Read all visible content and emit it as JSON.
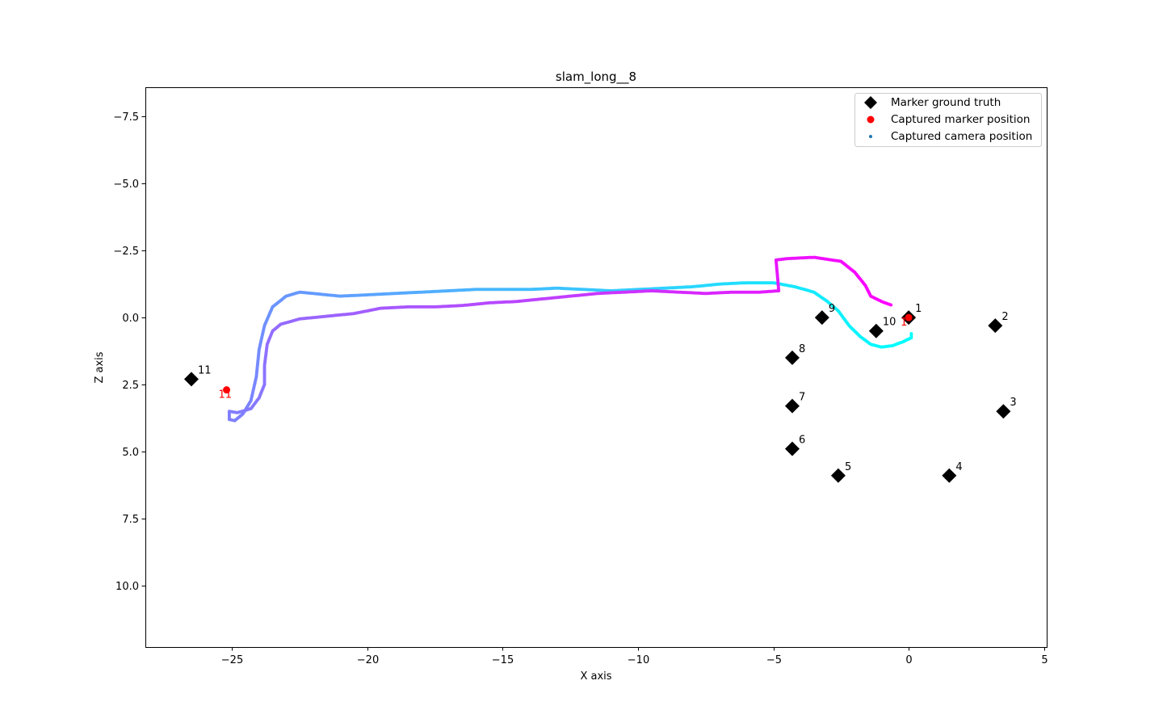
{
  "chart_data": {
    "type": "scatter",
    "title": "slam_long__8",
    "xlabel": "X axis",
    "ylabel": "Z axis",
    "xlim": [
      -28.2,
      5.1
    ],
    "ylim": [
      -8.6,
      12.3
    ],
    "y_inverted": true,
    "grid": false,
    "legend_position": "top-right",
    "x_ticks": [
      {
        "value": -25,
        "label": "−25"
      },
      {
        "value": -20,
        "label": "−20"
      },
      {
        "value": -15,
        "label": "−15"
      },
      {
        "value": -10,
        "label": "−10"
      },
      {
        "value": -5,
        "label": "−5"
      },
      {
        "value": 0,
        "label": "0"
      },
      {
        "value": 5,
        "label": "5"
      }
    ],
    "y_ticks": [
      {
        "value": -7.5,
        "label": "−7.5"
      },
      {
        "value": -5.0,
        "label": "−5.0"
      },
      {
        "value": -2.5,
        "label": "−2.5"
      },
      {
        "value": 0.0,
        "label": "0.0"
      },
      {
        "value": 2.5,
        "label": "2.5"
      },
      {
        "value": 5.0,
        "label": "5.0"
      },
      {
        "value": 7.5,
        "label": "7.5"
      },
      {
        "value": 10.0,
        "label": "10.0"
      }
    ],
    "legend": [
      {
        "label": "Marker ground truth",
        "symbol": "diamond",
        "color": "#000000"
      },
      {
        "label": "Captured marker position",
        "symbol": "circle",
        "color": "#ff0000"
      },
      {
        "label": "Captured camera position",
        "symbol": "dot",
        "color": "#1f77b4"
      }
    ],
    "markers_ground_truth": [
      {
        "label": "1",
        "x": 0.0,
        "z": 0.0
      },
      {
        "label": "2",
        "x": 3.2,
        "z": 0.3
      },
      {
        "label": "3",
        "x": 3.5,
        "z": 3.5
      },
      {
        "label": "4",
        "x": 1.5,
        "z": 5.9
      },
      {
        "label": "5",
        "x": -2.6,
        "z": 5.9
      },
      {
        "label": "6",
        "x": -4.3,
        "z": 4.9
      },
      {
        "label": "7",
        "x": -4.3,
        "z": 3.3
      },
      {
        "label": "8",
        "x": -4.3,
        "z": 1.5
      },
      {
        "label": "9",
        "x": -3.2,
        "z": 0.0
      },
      {
        "label": "10",
        "x": -1.2,
        "z": 0.5
      },
      {
        "label": "11",
        "x": -26.5,
        "z": 2.3
      }
    ],
    "captured_markers": [
      {
        "label": "1",
        "x": 0.0,
        "z": 0.0
      },
      {
        "label": "11",
        "x": -25.2,
        "z": 2.7
      }
    ],
    "camera_path_color_start": "#00ffff",
    "camera_path_color_end": "#ff00ff",
    "camera_path": [
      [
        0.1,
        0.6
      ],
      [
        0.1,
        0.75
      ],
      [
        -0.2,
        0.9
      ],
      [
        -0.6,
        1.05
      ],
      [
        -1.0,
        1.1
      ],
      [
        -1.4,
        1.0
      ],
      [
        -1.8,
        0.7
      ],
      [
        -2.2,
        0.3
      ],
      [
        -2.6,
        -0.25
      ],
      [
        -3.0,
        -0.6
      ],
      [
        -3.5,
        -0.95
      ],
      [
        -4.2,
        -1.15
      ],
      [
        -5.0,
        -1.3
      ],
      [
        -6.0,
        -1.3
      ],
      [
        -7.0,
        -1.25
      ],
      [
        -8.0,
        -1.15
      ],
      [
        -9.0,
        -1.1
      ],
      [
        -10.0,
        -1.05
      ],
      [
        -11.0,
        -1.0
      ],
      [
        -12.0,
        -1.05
      ],
      [
        -13.0,
        -1.1
      ],
      [
        -14.0,
        -1.05
      ],
      [
        -15.0,
        -1.05
      ],
      [
        -16.0,
        -1.05
      ],
      [
        -17.0,
        -1.0
      ],
      [
        -18.0,
        -0.95
      ],
      [
        -19.0,
        -0.9
      ],
      [
        -20.0,
        -0.85
      ],
      [
        -21.0,
        -0.8
      ],
      [
        -21.5,
        -0.85
      ],
      [
        -22.0,
        -0.9
      ],
      [
        -22.5,
        -0.95
      ],
      [
        -23.0,
        -0.8
      ],
      [
        -23.5,
        -0.4
      ],
      [
        -23.8,
        0.3
      ],
      [
        -24.0,
        1.2
      ],
      [
        -24.1,
        2.2
      ],
      [
        -24.3,
        3.1
      ],
      [
        -24.6,
        3.6
      ],
      [
        -24.9,
        3.85
      ],
      [
        -25.1,
        3.8
      ],
      [
        -25.1,
        3.5
      ],
      [
        -24.8,
        3.55
      ],
      [
        -24.3,
        3.4
      ],
      [
        -24.0,
        3.0
      ],
      [
        -23.8,
        2.5
      ],
      [
        -23.8,
        1.8
      ],
      [
        -23.7,
        1.0
      ],
      [
        -23.5,
        0.5
      ],
      [
        -23.2,
        0.25
      ],
      [
        -22.5,
        0.05
      ],
      [
        -21.5,
        -0.05
      ],
      [
        -20.5,
        -0.15
      ],
      [
        -19.5,
        -0.35
      ],
      [
        -18.5,
        -0.4
      ],
      [
        -17.5,
        -0.4
      ],
      [
        -16.5,
        -0.45
      ],
      [
        -15.5,
        -0.55
      ],
      [
        -14.5,
        -0.6
      ],
      [
        -13.5,
        -0.7
      ],
      [
        -12.5,
        -0.8
      ],
      [
        -11.5,
        -0.9
      ],
      [
        -10.5,
        -0.95
      ],
      [
        -9.5,
        -1.0
      ],
      [
        -8.5,
        -0.95
      ],
      [
        -7.5,
        -0.9
      ],
      [
        -6.5,
        -0.95
      ],
      [
        -5.5,
        -0.95
      ],
      [
        -4.8,
        -1.0
      ],
      [
        -4.9,
        -2.15
      ],
      [
        -4.5,
        -2.2
      ],
      [
        -3.5,
        -2.25
      ],
      [
        -2.5,
        -2.1
      ],
      [
        -2.0,
        -1.7
      ],
      [
        -1.6,
        -1.2
      ],
      [
        -1.4,
        -0.8
      ],
      [
        -1.0,
        -0.6
      ],
      [
        -0.6,
        -0.45
      ]
    ]
  }
}
